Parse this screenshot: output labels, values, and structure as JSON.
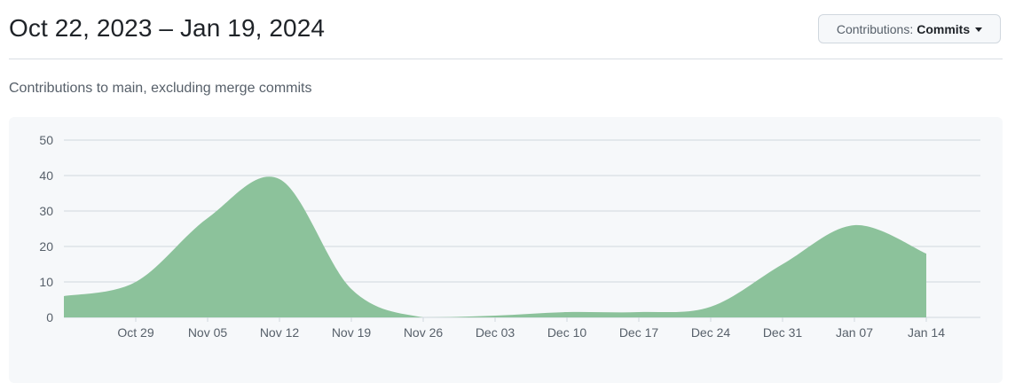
{
  "header": {
    "title": "Oct 22, 2023 – Jan 19, 2024"
  },
  "dropdown": {
    "label": "Contributions:",
    "value": "Commits"
  },
  "subtitle": "Contributions to main, excluding merge commits",
  "colors": {
    "area_fill": "#8cc29b",
    "grid": "#d0d7de",
    "panel_bg": "#f6f8fa"
  },
  "chart_data": {
    "type": "area",
    "title": "",
    "xlabel": "",
    "ylabel": "",
    "ylim": [
      0,
      50
    ],
    "yticks": [
      0,
      10,
      20,
      30,
      40,
      50
    ],
    "xlim": [
      "2023-10-22",
      "2024-01-14"
    ],
    "xtick_dates": [
      "2023-10-29",
      "2023-11-05",
      "2023-11-12",
      "2023-11-19",
      "2023-11-26",
      "2023-12-03",
      "2023-12-10",
      "2023-12-17",
      "2023-12-24",
      "2023-12-31",
      "2024-01-07",
      "2024-01-14"
    ],
    "xtick_labels": [
      "Oct 29",
      "Nov 05",
      "Nov 12",
      "Nov 19",
      "Nov 26",
      "Dec 03",
      "Dec 10",
      "Dec 17",
      "Dec 24",
      "Dec 31",
      "Jan 07",
      "Jan 14"
    ],
    "grid": true,
    "legend": false,
    "series": [
      {
        "x": [
          "2023-10-22",
          "2023-10-29",
          "2023-11-05",
          "2023-11-12",
          "2023-11-19",
          "2023-11-26",
          "2023-12-03",
          "2023-12-10",
          "2023-12-17",
          "2023-12-24",
          "2023-12-31",
          "2024-01-07",
          "2024-01-14"
        ],
        "values": [
          6,
          10,
          28,
          39,
          8,
          0,
          0.5,
          1.5,
          1.5,
          3,
          15,
          26,
          18
        ]
      }
    ]
  }
}
